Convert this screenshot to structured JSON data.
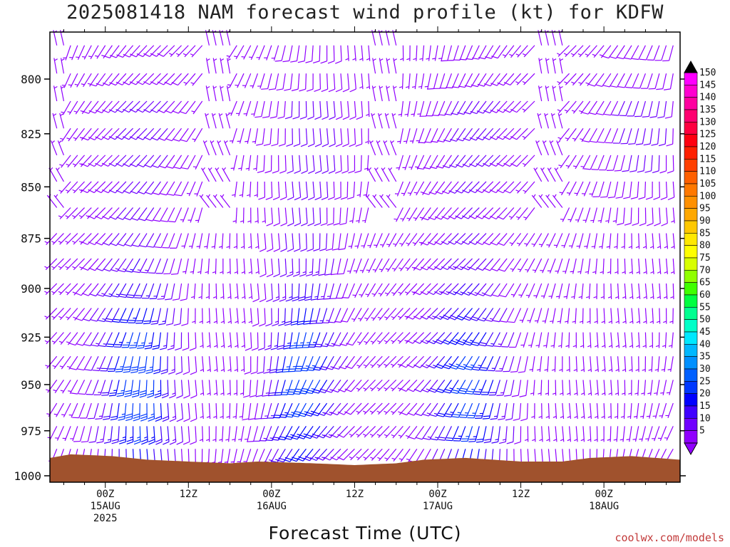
{
  "title": "2025081418 NAM forecast wind profile (kt) for KDFW",
  "xlabel": "Forecast Time (UTC)",
  "credit": "coolwx.com/models",
  "chart_data": {
    "type": "wind_barb_time_height",
    "title": "2025081418 NAM forecast wind profile (kt) for KDFW",
    "xlabel": "Forecast Time (UTC)",
    "ylabel": "",
    "y_ticks": [
      800,
      825,
      850,
      875,
      900,
      925,
      950,
      975,
      1000
    ],
    "ylim": [
      780,
      1003
    ],
    "y_scale": "log-pressure",
    "x_range_hours_from_15AUG00Z": [
      -8,
      83
    ],
    "x_ticks": [
      {
        "hour": 0,
        "lines": [
          "00Z",
          "15AUG",
          "2025"
        ]
      },
      {
        "hour": 12,
        "lines": [
          "12Z"
        ]
      },
      {
        "hour": 24,
        "lines": [
          "00Z",
          "16AUG"
        ]
      },
      {
        "hour": 36,
        "lines": [
          "12Z"
        ]
      },
      {
        "hour": 48,
        "lines": [
          "00Z",
          "17AUG"
        ]
      },
      {
        "hour": 60,
        "lines": [
          "12Z"
        ]
      },
      {
        "hour": 72,
        "lines": [
          "00Z",
          "18AUG"
        ]
      }
    ],
    "surface_pressure_mb": [
      {
        "hour": -8,
        "p": 990
      },
      {
        "hour": -5,
        "p": 988
      },
      {
        "hour": 1,
        "p": 989
      },
      {
        "hour": 6,
        "p": 991
      },
      {
        "hour": 12,
        "p": 992
      },
      {
        "hour": 18,
        "p": 993
      },
      {
        "hour": 22,
        "p": 992
      },
      {
        "hour": 30,
        "p": 993
      },
      {
        "hour": 36,
        "p": 994
      },
      {
        "hour": 42,
        "p": 993
      },
      {
        "hour": 46,
        "p": 991
      },
      {
        "hour": 52,
        "p": 990
      },
      {
        "hour": 60,
        "p": 992
      },
      {
        "hour": 66,
        "p": 992
      },
      {
        "hour": 70,
        "p": 990
      },
      {
        "hour": 76,
        "p": 989
      },
      {
        "hour": 83,
        "p": 991
      }
    ],
    "wind_regimes": [
      {
        "hour_center": 5,
        "hour_width": 5,
        "p_center": 945,
        "max_speed_kt": 32
      },
      {
        "hour_center": 29,
        "hour_width": 5,
        "p_center": 945,
        "max_speed_kt": 31
      },
      {
        "hour_center": 53,
        "hour_width": 5,
        "p_center": 950,
        "max_speed_kt": 30
      }
    ],
    "colorbar": {
      "labels": [
        150,
        145,
        140,
        135,
        130,
        125,
        120,
        115,
        110,
        105,
        100,
        95,
        90,
        85,
        80,
        75,
        70,
        65,
        60,
        55,
        50,
        45,
        40,
        35,
        30,
        25,
        20,
        15,
        10,
        5
      ],
      "units": "kt",
      "colors": [
        "#ff00ff",
        "#ff00d0",
        "#ff00a0",
        "#ff0070",
        "#ff0040",
        "#ff0010",
        "#ff2000",
        "#ff4000",
        "#ff6000",
        "#ff7800",
        "#ff9000",
        "#ffa800",
        "#ffc800",
        "#ffe800",
        "#ffff00",
        "#d8ff00",
        "#90ff00",
        "#40ff00",
        "#00ff40",
        "#00ff90",
        "#00ffc8",
        "#00e8ff",
        "#00b8ff",
        "#0090ff",
        "#0060ff",
        "#0038ff",
        "#0000ff",
        "#4000ff",
        "#7000ff",
        "#9000ff"
      ]
    },
    "colors": {
      "ground": "#a0522d",
      "frame": "#000000"
    }
  }
}
